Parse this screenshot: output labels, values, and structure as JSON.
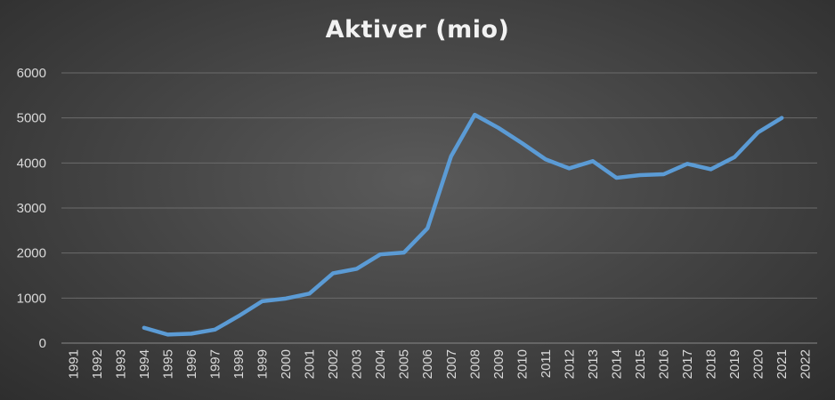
{
  "chart_data": {
    "type": "line",
    "title": "Aktiver (mio)",
    "xlabel": "",
    "ylabel": "",
    "ylim": [
      0,
      6000
    ],
    "yticks": [
      0,
      1000,
      2000,
      3000,
      4000,
      5000,
      6000
    ],
    "grid": true,
    "legend": "none",
    "categories": [
      "1991",
      "1992",
      "1993",
      "1994",
      "1995",
      "1996",
      "1997",
      "1998",
      "1999",
      "2000",
      "2001",
      "2002",
      "2003",
      "2004",
      "2005",
      "2006",
      "2007",
      "2008",
      "2009",
      "2010",
      "2011",
      "2012",
      "2013",
      "2014",
      "2015",
      "2016",
      "2017",
      "2018",
      "2019",
      "2020",
      "2021",
      "2022"
    ],
    "series": [
      {
        "color": "#5b9bd5",
        "values": [
          null,
          null,
          null,
          340,
          190,
          210,
          300,
          600,
          930,
          990,
          1100,
          1550,
          1650,
          1970,
          2010,
          2550,
          4150,
          5070,
          4780,
          4440,
          4080,
          3880,
          4040,
          3670,
          3730,
          3750,
          3980,
          3860,
          4130,
          4680,
          5000,
          null
        ]
      }
    ]
  }
}
